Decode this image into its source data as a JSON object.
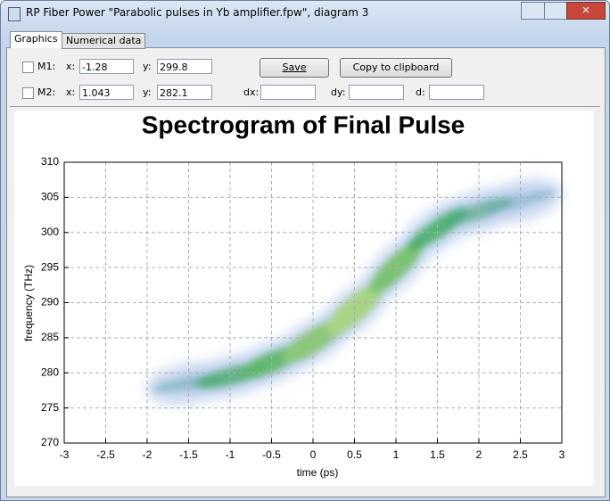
{
  "window": {
    "title": "RP Fiber Power \"Parabolic pulses in Yb amplifier.fpw\", diagram 3"
  },
  "tabs": [
    "Graphics",
    "Numerical data"
  ],
  "controls": {
    "m1_label": "M1:",
    "m1_x_label": "x:",
    "m1_x": "-1.28",
    "m1_y_label": "y:",
    "m1_y": "299.8",
    "m2_label": "M2:",
    "m2_x_label": "x:",
    "m2_x": "1.043",
    "m2_y_label": "y:",
    "m2_y": "282.1",
    "dx_label": "dx:",
    "dy_label": "dy:",
    "d_label": "d:",
    "save": "Save",
    "copy": "Copy to clipboard"
  },
  "chart_data": {
    "type": "spectrogram",
    "title": "Spectrogram of Final Pulse",
    "xlabel": "time (ps)",
    "ylabel": "frequency (THz)",
    "x": [
      -1.5,
      -1,
      -0.5,
      0,
      0.5,
      1,
      1.5,
      2,
      2.5
    ],
    "y": [
      278.5,
      279.5,
      281.5,
      284.5,
      289,
      295,
      300.5,
      303,
      304.5
    ],
    "intensity": [
      0.2,
      0.45,
      0.6,
      0.75,
      0.85,
      0.7,
      0.5,
      0.35,
      0.15
    ],
    "xlim": [
      -3,
      3
    ],
    "ylim": [
      270,
      310
    ],
    "xticks": [
      -3,
      -2.5,
      -2,
      -1.5,
      -1,
      -0.5,
      0,
      0.5,
      1,
      1.5,
      2,
      2.5,
      3
    ],
    "yticks": [
      270,
      275,
      280,
      285,
      290,
      295,
      300,
      305,
      310
    ],
    "grid": true
  }
}
